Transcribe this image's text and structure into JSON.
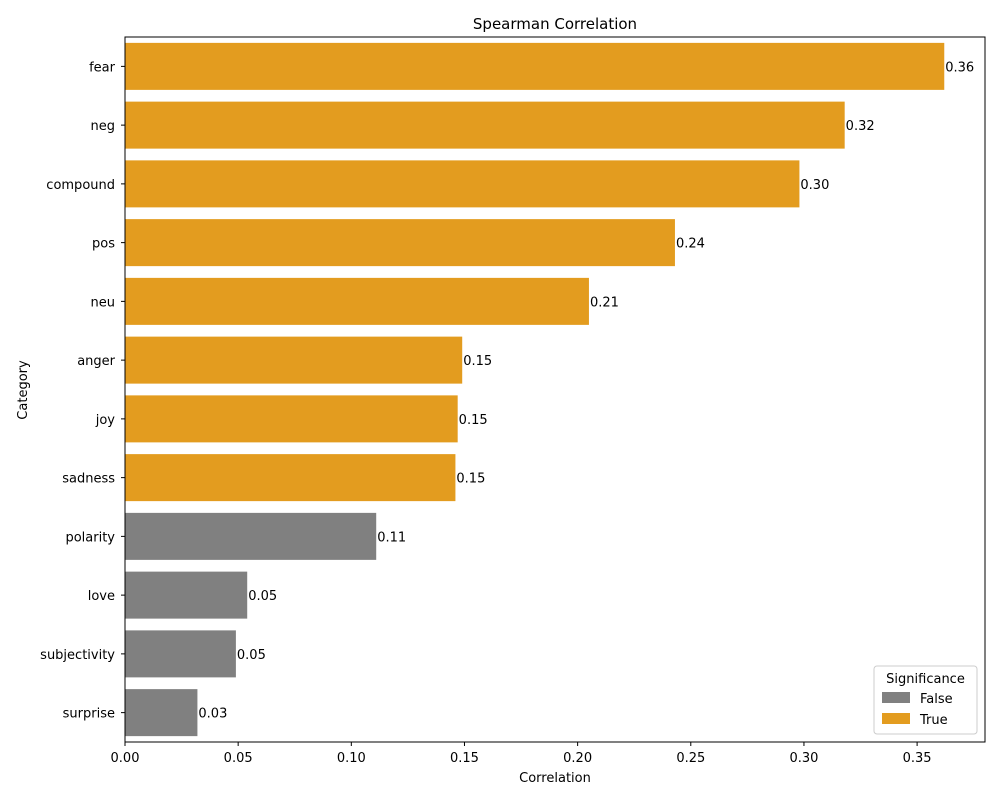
{
  "chart_data": {
    "type": "bar",
    "orientation": "horizontal",
    "title": "Spearman Correlation",
    "xlabel": "Correlation",
    "ylabel": "Category",
    "xlim": [
      0,
      0.38
    ],
    "xticks": [
      0.0,
      0.05,
      0.1,
      0.15,
      0.2,
      0.25,
      0.3,
      0.35
    ],
    "xtick_labels": [
      "0.00",
      "0.05",
      "0.10",
      "0.15",
      "0.20",
      "0.25",
      "0.30",
      "0.35"
    ],
    "grid": false,
    "categories": [
      "fear",
      "neg",
      "compound",
      "pos",
      "neu",
      "anger",
      "joy",
      "sadness",
      "polarity",
      "love",
      "subjectivity",
      "surprise"
    ],
    "values": [
      0.362,
      0.318,
      0.298,
      0.243,
      0.205,
      0.149,
      0.147,
      0.146,
      0.111,
      0.054,
      0.049,
      0.032
    ],
    "value_labels": [
      "0.36",
      "0.32",
      "0.30",
      "0.24",
      "0.21",
      "0.15",
      "0.15",
      "0.15",
      "0.11",
      "0.05",
      "0.05",
      "0.03"
    ],
    "significance": [
      true,
      true,
      true,
      true,
      true,
      true,
      true,
      true,
      false,
      false,
      false,
      false
    ],
    "legend": {
      "title": "Significance",
      "placement": "bottom-right",
      "entries": [
        {
          "label": "False",
          "color": "#808080"
        },
        {
          "label": "True",
          "color": "#e39c1f"
        }
      ]
    },
    "colors": {
      "False": "#808080",
      "True": "#e39c1f"
    }
  }
}
